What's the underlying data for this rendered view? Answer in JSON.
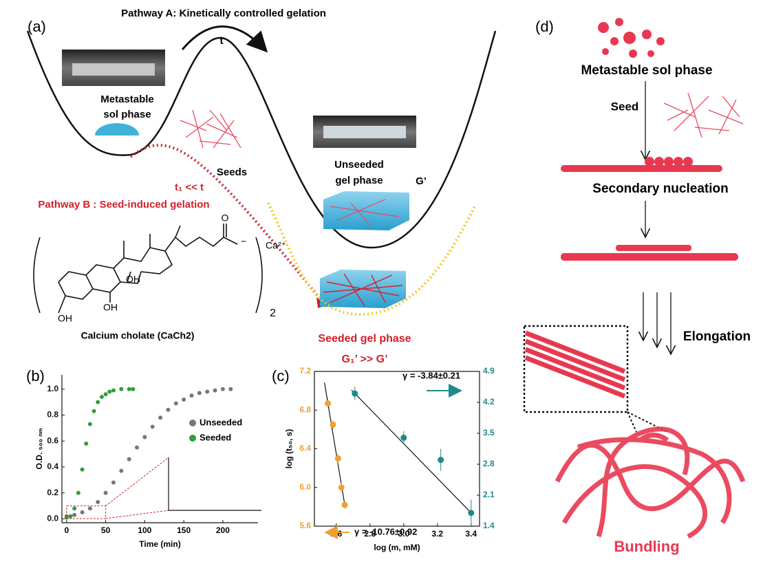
{
  "panel_a": {
    "label": "(a)",
    "pathway_a": "Pathway A: Kinetically controlled gelation",
    "t": "t",
    "metastable_line1": "Metastable",
    "metastable_line2": "sol phase",
    "seeds": "Seeds",
    "unseeded_line1": "Unseeded",
    "unseeded_line2": "gel phase",
    "g_prime": "G’",
    "t1": "t₁ << t",
    "pathway_b": "Pathway B : Seed-induced gelation",
    "structure": {
      "oh1": "OH",
      "oh2": "OH",
      "oh3": "OH",
      "o": "O",
      "charge": "−",
      "ca": "Ca²⁺",
      "count": "2"
    },
    "compound": "Calcium cholate (CaCh2)",
    "seeded": "Seeded gel phase",
    "g1": "G₁’ >> G’"
  },
  "panel_d": {
    "label": "(d)",
    "metastable": "Metastable sol phase",
    "seed": "Seed",
    "secondary": "Secondary  nucleation",
    "elongation": "Elongation",
    "bundling": "Bundling"
  },
  "chart_data": [
    {
      "type": "scatter",
      "label": "(b)",
      "xlabel": "Time (min)",
      "ylabel": "O.D. ₅₀₀ ₙₘ",
      "xlim": [
        -6,
        245
      ],
      "ylim": [
        -0.03,
        1.11
      ],
      "xticks": [
        0,
        50,
        100,
        150,
        200
      ],
      "yticks": [
        {
          "value": 0,
          "label": "0.0"
        },
        {
          "value": 0.2,
          "label": "0.2"
        },
        {
          "value": 0.4,
          "label": "0.4"
        },
        {
          "value": 0.6,
          "label": "0.6"
        },
        {
          "value": 0.8,
          "label": "0.8"
        },
        {
          "value": 1,
          "label": "1.0"
        }
      ],
      "series": [
        {
          "name": "Unseeded",
          "color": "#777777",
          "x": [
            0,
            10,
            20,
            30,
            40,
            50,
            60,
            70,
            80,
            90,
            100,
            110,
            120,
            130,
            140,
            150,
            160,
            170,
            180,
            190,
            200,
            210
          ],
          "values": [
            0.02,
            0.03,
            0.05,
            0.08,
            0.13,
            0.2,
            0.28,
            0.37,
            0.46,
            0.55,
            0.63,
            0.71,
            0.78,
            0.84,
            0.89,
            0.92,
            0.95,
            0.97,
            0.98,
            0.99,
            1.0,
            1.0
          ]
        },
        {
          "name": "Seeded",
          "color": "#2e9e3a",
          "x": [
            0,
            5,
            10,
            15,
            20,
            25,
            30,
            35,
            40,
            45,
            50,
            55,
            60,
            70,
            80,
            85
          ],
          "values": [
            0.01,
            0.02,
            0.08,
            0.2,
            0.38,
            0.58,
            0.73,
            0.83,
            0.9,
            0.94,
            0.96,
            0.98,
            0.99,
            1.0,
            1.0,
            1.0
          ]
        }
      ],
      "legend": "right"
    },
    {
      "type": "scatter",
      "label": "(c)",
      "xlabel": "log (m, mM)",
      "ylabel": "log (t₅₀, s)",
      "xlim": [
        2.47,
        3.45
      ],
      "ylim": [
        5.6,
        7.2
      ],
      "y2lim": [
        1.4,
        4.9
      ],
      "xticks": [
        2.6,
        2.8,
        {
          "value": 3,
          "label": "3.0"
        },
        3.2,
        3.4
      ],
      "yticks": [
        5.6,
        {
          "value": 6,
          "label": "6.0"
        },
        6.4,
        6.8,
        7.2
      ],
      "y2ticks": [
        1.4,
        2.1,
        2.8,
        3.5,
        4.2,
        4.9
      ],
      "series": [
        {
          "color": "#f0a030",
          "x": [
            2.55,
            2.58,
            2.61,
            2.63,
            2.65
          ],
          "values": [
            6.87,
            6.65,
            6.3,
            6.0,
            5.82
          ],
          "errors": [
            0.05,
            0.05,
            0.05,
            0.05,
            0.04
          ]
        },
        {
          "color": "#1f8a8a",
          "axis": "y2",
          "x": [
            2.71,
            3.0,
            3.22,
            3.4
          ],
          "values": [
            4.4,
            3.4,
            2.9,
            1.7
          ],
          "errors": [
            0.15,
            0.15,
            0.25,
            0.3
          ]
        }
      ],
      "annotations": [
        "γ = -10.76±0.92",
        "γ = -3.84±0.21"
      ]
    }
  ]
}
